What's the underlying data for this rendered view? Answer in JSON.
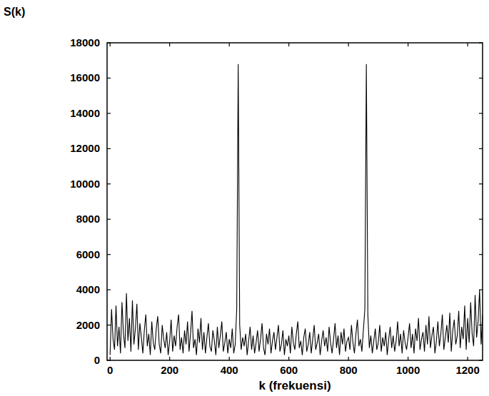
{
  "chart_data": {
    "type": "line",
    "y_label": "S(k)",
    "x_label": "k (frekuensi)",
    "color": "#000000",
    "xlim": [
      -10,
      1250
    ],
    "ylim": [
      0,
      18000
    ],
    "xticks": [
      0,
      200,
      400,
      600,
      800,
      1000,
      1200
    ],
    "yticks": [
      0,
      2000,
      4000,
      6000,
      8000,
      10000,
      12000,
      14000,
      16000,
      18000
    ],
    "grid": false,
    "x": [
      0,
      5,
      10,
      15,
      20,
      25,
      30,
      35,
      40,
      45,
      50,
      55,
      60,
      65,
      70,
      75,
      80,
      85,
      90,
      95,
      100,
      105,
      110,
      115,
      120,
      125,
      130,
      135,
      140,
      145,
      150,
      155,
      160,
      165,
      170,
      175,
      180,
      185,
      190,
      195,
      200,
      205,
      210,
      215,
      220,
      225,
      230,
      235,
      240,
      245,
      250,
      255,
      260,
      265,
      270,
      275,
      280,
      285,
      290,
      295,
      300,
      305,
      310,
      315,
      320,
      325,
      330,
      335,
      340,
      345,
      350,
      355,
      360,
      365,
      370,
      375,
      380,
      385,
      390,
      395,
      400,
      405,
      410,
      415,
      420,
      425,
      430,
      435,
      440,
      445,
      450,
      455,
      460,
      465,
      470,
      475,
      480,
      485,
      490,
      495,
      500,
      505,
      510,
      515,
      520,
      525,
      530,
      535,
      540,
      545,
      550,
      555,
      560,
      565,
      570,
      575,
      580,
      585,
      590,
      595,
      600,
      605,
      610,
      615,
      620,
      625,
      630,
      635,
      640,
      645,
      650,
      655,
      660,
      665,
      670,
      675,
      680,
      685,
      690,
      695,
      700,
      705,
      710,
      715,
      720,
      725,
      730,
      735,
      740,
      745,
      750,
      755,
      760,
      765,
      770,
      775,
      780,
      785,
      790,
      795,
      800,
      805,
      810,
      815,
      820,
      825,
      830,
      835,
      840,
      845,
      850,
      855,
      860,
      865,
      870,
      875,
      880,
      885,
      890,
      895,
      900,
      905,
      910,
      915,
      920,
      925,
      930,
      935,
      940,
      945,
      950,
      955,
      960,
      965,
      970,
      975,
      980,
      985,
      990,
      995,
      1000,
      1005,
      1010,
      1015,
      1020,
      1025,
      1030,
      1035,
      1040,
      1045,
      1050,
      1055,
      1060,
      1065,
      1070,
      1075,
      1080,
      1085,
      1090,
      1095,
      1100,
      1105,
      1110,
      1115,
      1120,
      1125,
      1130,
      1135,
      1140,
      1145,
      1150,
      1155,
      1160,
      1165,
      1170,
      1175,
      1180,
      1185,
      1190,
      1195,
      1200,
      1205,
      1210,
      1215,
      1220,
      1225,
      1230,
      1235,
      1240,
      1245,
      1250
    ],
    "values": [
      300,
      2900,
      1200,
      600,
      3100,
      800,
      1900,
      400,
      3300,
      1500,
      700,
      3800,
      1100,
      2400,
      500,
      3400,
      900,
      1800,
      3200,
      600,
      2100,
      1300,
      400,
      1700,
      2600,
      800,
      1500,
      300,
      2200,
      1000,
      600,
      1800,
      2500,
      900,
      400,
      2000,
      1200,
      700,
      1600,
      300,
      1100,
      2300,
      500,
      1400,
      800,
      1900,
      2600,
      600,
      1300,
      400,
      1700,
      900,
      2200,
      500,
      1500,
      2800,
      700,
      1200,
      300,
      1800,
      1000,
      2400,
      600,
      1600,
      400,
      1300,
      2100,
      800,
      500,
      1700,
      1100,
      300,
      1900,
      700,
      1400,
      2200,
      500,
      1000,
      1600,
      400,
      1200,
      700,
      1800,
      400,
      900,
      2900,
      16800,
      2000,
      600,
      1300,
      800,
      1500,
      300,
      1100,
      1900,
      600,
      1400,
      400,
      1000,
      1700,
      500,
      1200,
      2100,
      700,
      300,
      1500,
      900,
      1800,
      400,
      1100,
      1600,
      600,
      1300,
      2000,
      500,
      900,
      1700,
      300,
      1200,
      800,
      1400,
      400,
      1900,
      1000,
      600,
      1500,
      2200,
      700,
      1100,
      300,
      1300,
      1800,
      500,
      900,
      1600,
      400,
      1200,
      2000,
      600,
      1000,
      1500,
      300,
      1100,
      1700,
      800,
      1300,
      500,
      1900,
      1000,
      400,
      1200,
      2100,
      700,
      1400,
      300,
      1600,
      900,
      1800,
      500,
      1100,
      1300,
      600,
      2000,
      1000,
      400,
      1500,
      2300,
      800,
      1200,
      500,
      1700,
      2900,
      16800,
      2600,
      700,
      1400,
      400,
      1100,
      1800,
      600,
      1000,
      2000,
      500,
      1300,
      800,
      1600,
      300,
      1200,
      1900,
      700,
      1400,
      500,
      1100,
      2200,
      800,
      1500,
      400,
      1700,
      1000,
      600,
      1300,
      2100,
      700,
      1500,
      400,
      1800,
      1100,
      2400,
      600,
      1200,
      1600,
      500,
      2000,
      900,
      2500,
      700,
      1400,
      1900,
      400,
      1100,
      2200,
      800,
      1500,
      2600,
      600,
      1300,
      2000,
      1000,
      2700,
      500,
      1700,
      2300,
      900,
      1400,
      2800,
      700,
      1900,
      1200,
      3100,
      600,
      2400,
      1000,
      3300,
      1500,
      800,
      3700,
      1300,
      2200,
      4000,
      900,
      2600
    ]
  }
}
